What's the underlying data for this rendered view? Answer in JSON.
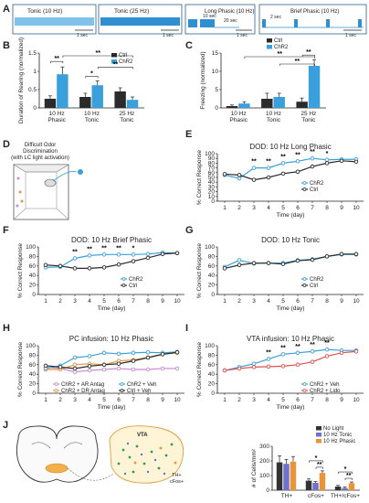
{
  "panel_labels": {
    "A": "A",
    "B": "B",
    "C": "C",
    "D": "D",
    "E": "E",
    "F": "F",
    "G": "G",
    "H": "H",
    "I": "I",
    "J": "J"
  },
  "colors": {
    "chr2": "#3aa0dc",
    "ctrl": "#2b2b2b",
    "ar_antag": "#c88bd1",
    "dr_antag": "#e8953a",
    "lido": "#e0504a",
    "ctrl_veh": "#2b2b2b",
    "no_light": "#333333",
    "tonic10": "#6f72c8",
    "phasic10": "#e8953a"
  },
  "panel_A": {
    "stim": [
      {
        "label": "Tonic (10 Hz)",
        "scale": "1 sec"
      },
      {
        "label": "Tonic (25 Hz)",
        "scale": "1 sec"
      },
      {
        "label": "Long Phasic (10 Hz)",
        "on": "10 sec",
        "off": "20 sec",
        "scale": "1 sec"
      },
      {
        "label": "Brief Phasic (10 Hz)",
        "on": "2 sec",
        "scale": "1 sec"
      }
    ]
  },
  "labels": {
    "d_text": [
      "Difficult Odor",
      "Discrimination",
      "(with LC light activation)"
    ],
    "j_region": "VTA",
    "j_cell_line1": "TH+",
    "j_cell_line2": "cFos+",
    "j_ylabel": "# of Cells/mm²"
  },
  "chart_data": [
    {
      "id": "B",
      "type": "bar",
      "ylabel": "Duration of Rearing (normalized)",
      "categories": [
        "10 Hz Phasic",
        "10 Hz Tonic",
        "25 Hz Tonic"
      ],
      "ylim": [
        0,
        1.5
      ],
      "yticks": [
        0,
        0.5,
        1.0,
        1.5
      ],
      "series": [
        {
          "name": "Ctrl",
          "values": [
            0.25,
            0.3,
            0.45
          ],
          "err": [
            0.08,
            0.1,
            0.1
          ]
        },
        {
          "name": "ChR2",
          "values": [
            0.92,
            0.62,
            0.22
          ],
          "err": [
            0.2,
            0.12,
            0.08
          ]
        }
      ],
      "sig": [
        "**",
        "*",
        "**",
        "**"
      ]
    },
    {
      "id": "C",
      "type": "bar",
      "ylabel": "Freezing (normalized)",
      "categories": [
        "10 Hz Phasic",
        "10 Hz Tonic",
        "25 Hz Tonic"
      ],
      "ylim": [
        0,
        15
      ],
      "yticks": [
        0,
        5,
        10,
        15
      ],
      "series": [
        {
          "name": "Ctrl",
          "values": [
            0.5,
            2.5,
            1.7
          ],
          "err": [
            0.3,
            1.5,
            1.0
          ]
        },
        {
          "name": "ChR2",
          "values": [
            1.2,
            3.0,
            11.5
          ],
          "err": [
            0.5,
            1.0,
            1.7
          ]
        }
      ],
      "sig": [
        "**",
        "**",
        "**"
      ]
    },
    {
      "id": "E",
      "type": "line",
      "title": "DOD: 10 Hz Long Phasic",
      "xlabel": "Time (day)",
      "ylabel": "% Correct Response",
      "x": [
        1,
        2,
        3,
        4,
        5,
        6,
        7,
        8,
        9,
        10
      ],
      "ylim": [
        0,
        100
      ],
      "yticks": [
        0,
        10,
        20,
        30,
        40,
        50,
        60,
        70,
        80,
        90,
        100
      ],
      "series": [
        {
          "name": "ChR2",
          "values": [
            55,
            48,
            70,
            70,
            80,
            84,
            90,
            87,
            88,
            88
          ]
        },
        {
          "name": "Ctrl",
          "values": [
            57,
            55,
            45,
            50,
            58,
            62,
            73,
            80,
            85,
            83
          ]
        }
      ],
      "sig": [
        "**",
        "**",
        "**",
        "**",
        "**",
        "*"
      ],
      "sig_x": [
        3,
        4,
        5,
        6,
        7,
        8
      ]
    },
    {
      "id": "F",
      "type": "line",
      "title": "DOD: 10 Hz Brief Phasic",
      "xlabel": "Time (day)",
      "ylabel": "% Correct Response",
      "x": [
        1,
        2,
        3,
        4,
        5,
        6,
        7,
        8,
        9,
        10
      ],
      "ylim": [
        0,
        100
      ],
      "yticks": [
        0,
        20,
        40,
        60,
        80,
        100
      ],
      "series": [
        {
          "name": "ChR2",
          "values": [
            57,
            58,
            76,
            82,
            84,
            84,
            84,
            85,
            88,
            87
          ]
        },
        {
          "name": "Ctrl",
          "values": [
            62,
            60,
            55,
            55,
            57,
            63,
            70,
            77,
            85,
            87
          ]
        }
      ],
      "sig": [
        "**",
        "**",
        "**",
        "**",
        "*"
      ],
      "sig_x": [
        3,
        4,
        5,
        6,
        7
      ]
    },
    {
      "id": "G",
      "type": "line",
      "title": "DOD: 10 Hz Tonic",
      "xlabel": "Time (day)",
      "ylabel": "% Correct Response",
      "x": [
        1,
        2,
        3,
        4,
        5,
        6,
        7,
        8,
        9,
        10
      ],
      "ylim": [
        0,
        100
      ],
      "yticks": [
        0,
        20,
        40,
        60,
        80,
        100
      ],
      "series": [
        {
          "name": "ChR2",
          "values": [
            58,
            72,
            65,
            66,
            66,
            72,
            74,
            80,
            84,
            84
          ]
        },
        {
          "name": "Ctrl",
          "values": [
            55,
            62,
            66,
            66,
            64,
            71,
            73,
            80,
            85,
            85
          ]
        }
      ]
    },
    {
      "id": "H",
      "type": "line",
      "title": "PC infusion: 10 Hz Phasic",
      "xlabel": "Time (day)",
      "ylabel": "% Correct Response",
      "x": [
        1,
        2,
        3,
        4,
        5,
        6,
        7,
        8,
        9,
        10
      ],
      "ylim": [
        0,
        100
      ],
      "yticks": [
        0,
        20,
        40,
        60,
        80,
        100
      ],
      "series": [
        {
          "name": "ChR2 + AR Antag",
          "values": [
            55,
            52,
            45,
            48,
            50,
            52,
            50,
            50,
            52,
            52
          ]
        },
        {
          "name": "ChR2 + DR Antag",
          "values": [
            50,
            50,
            60,
            62,
            60,
            68,
            70,
            75,
            82,
            85
          ]
        },
        {
          "name": "ChR2 + Veh",
          "values": [
            52,
            58,
            75,
            78,
            85,
            83,
            85,
            86,
            85,
            87
          ]
        },
        {
          "name": "Ctrl + Veh",
          "values": [
            58,
            55,
            52,
            57,
            60,
            62,
            68,
            75,
            82,
            86
          ]
        }
      ]
    },
    {
      "id": "I",
      "type": "line",
      "title": "VTA infusion: 10 Hz Phasic",
      "xlabel": "Time (day)",
      "ylabel": "% Correct Response",
      "x": [
        1,
        2,
        3,
        4,
        5,
        6,
        7,
        8,
        9,
        10
      ],
      "ylim": [
        0,
        100
      ],
      "yticks": [
        0,
        20,
        40,
        60,
        80,
        100
      ],
      "series": [
        {
          "name": "ChR2 + Veh",
          "values": [
            48,
            55,
            62,
            72,
            82,
            85,
            88,
            92,
            90,
            90
          ]
        },
        {
          "name": "ChR2 + Lido",
          "values": [
            48,
            52,
            55,
            56,
            57,
            60,
            66,
            78,
            85,
            88
          ]
        }
      ],
      "sig": [
        "**",
        "**",
        "**",
        "**",
        "**"
      ],
      "sig_x": [
        4,
        5,
        6,
        7,
        8
      ]
    },
    {
      "id": "J",
      "type": "bar",
      "ylabel": "# of Cells/mm²",
      "categories": [
        "TH+",
        "cFos+",
        "TH+/cFos+"
      ],
      "ylim": [
        0,
        300
      ],
      "yticks": [
        0,
        100,
        200,
        300
      ],
      "series": [
        {
          "name": "No Light",
          "values": [
            190,
            65,
            25
          ],
          "err": [
            45,
            12,
            8
          ]
        },
        {
          "name": "10 Hz Tonic",
          "values": [
            180,
            50,
            15
          ],
          "err": [
            30,
            10,
            6
          ]
        },
        {
          "name": "10 Hz Phasic",
          "values": [
            195,
            118,
            48
          ],
          "err": [
            35,
            14,
            8
          ]
        }
      ],
      "sig": [
        "*",
        "**",
        "*",
        "**"
      ]
    }
  ]
}
